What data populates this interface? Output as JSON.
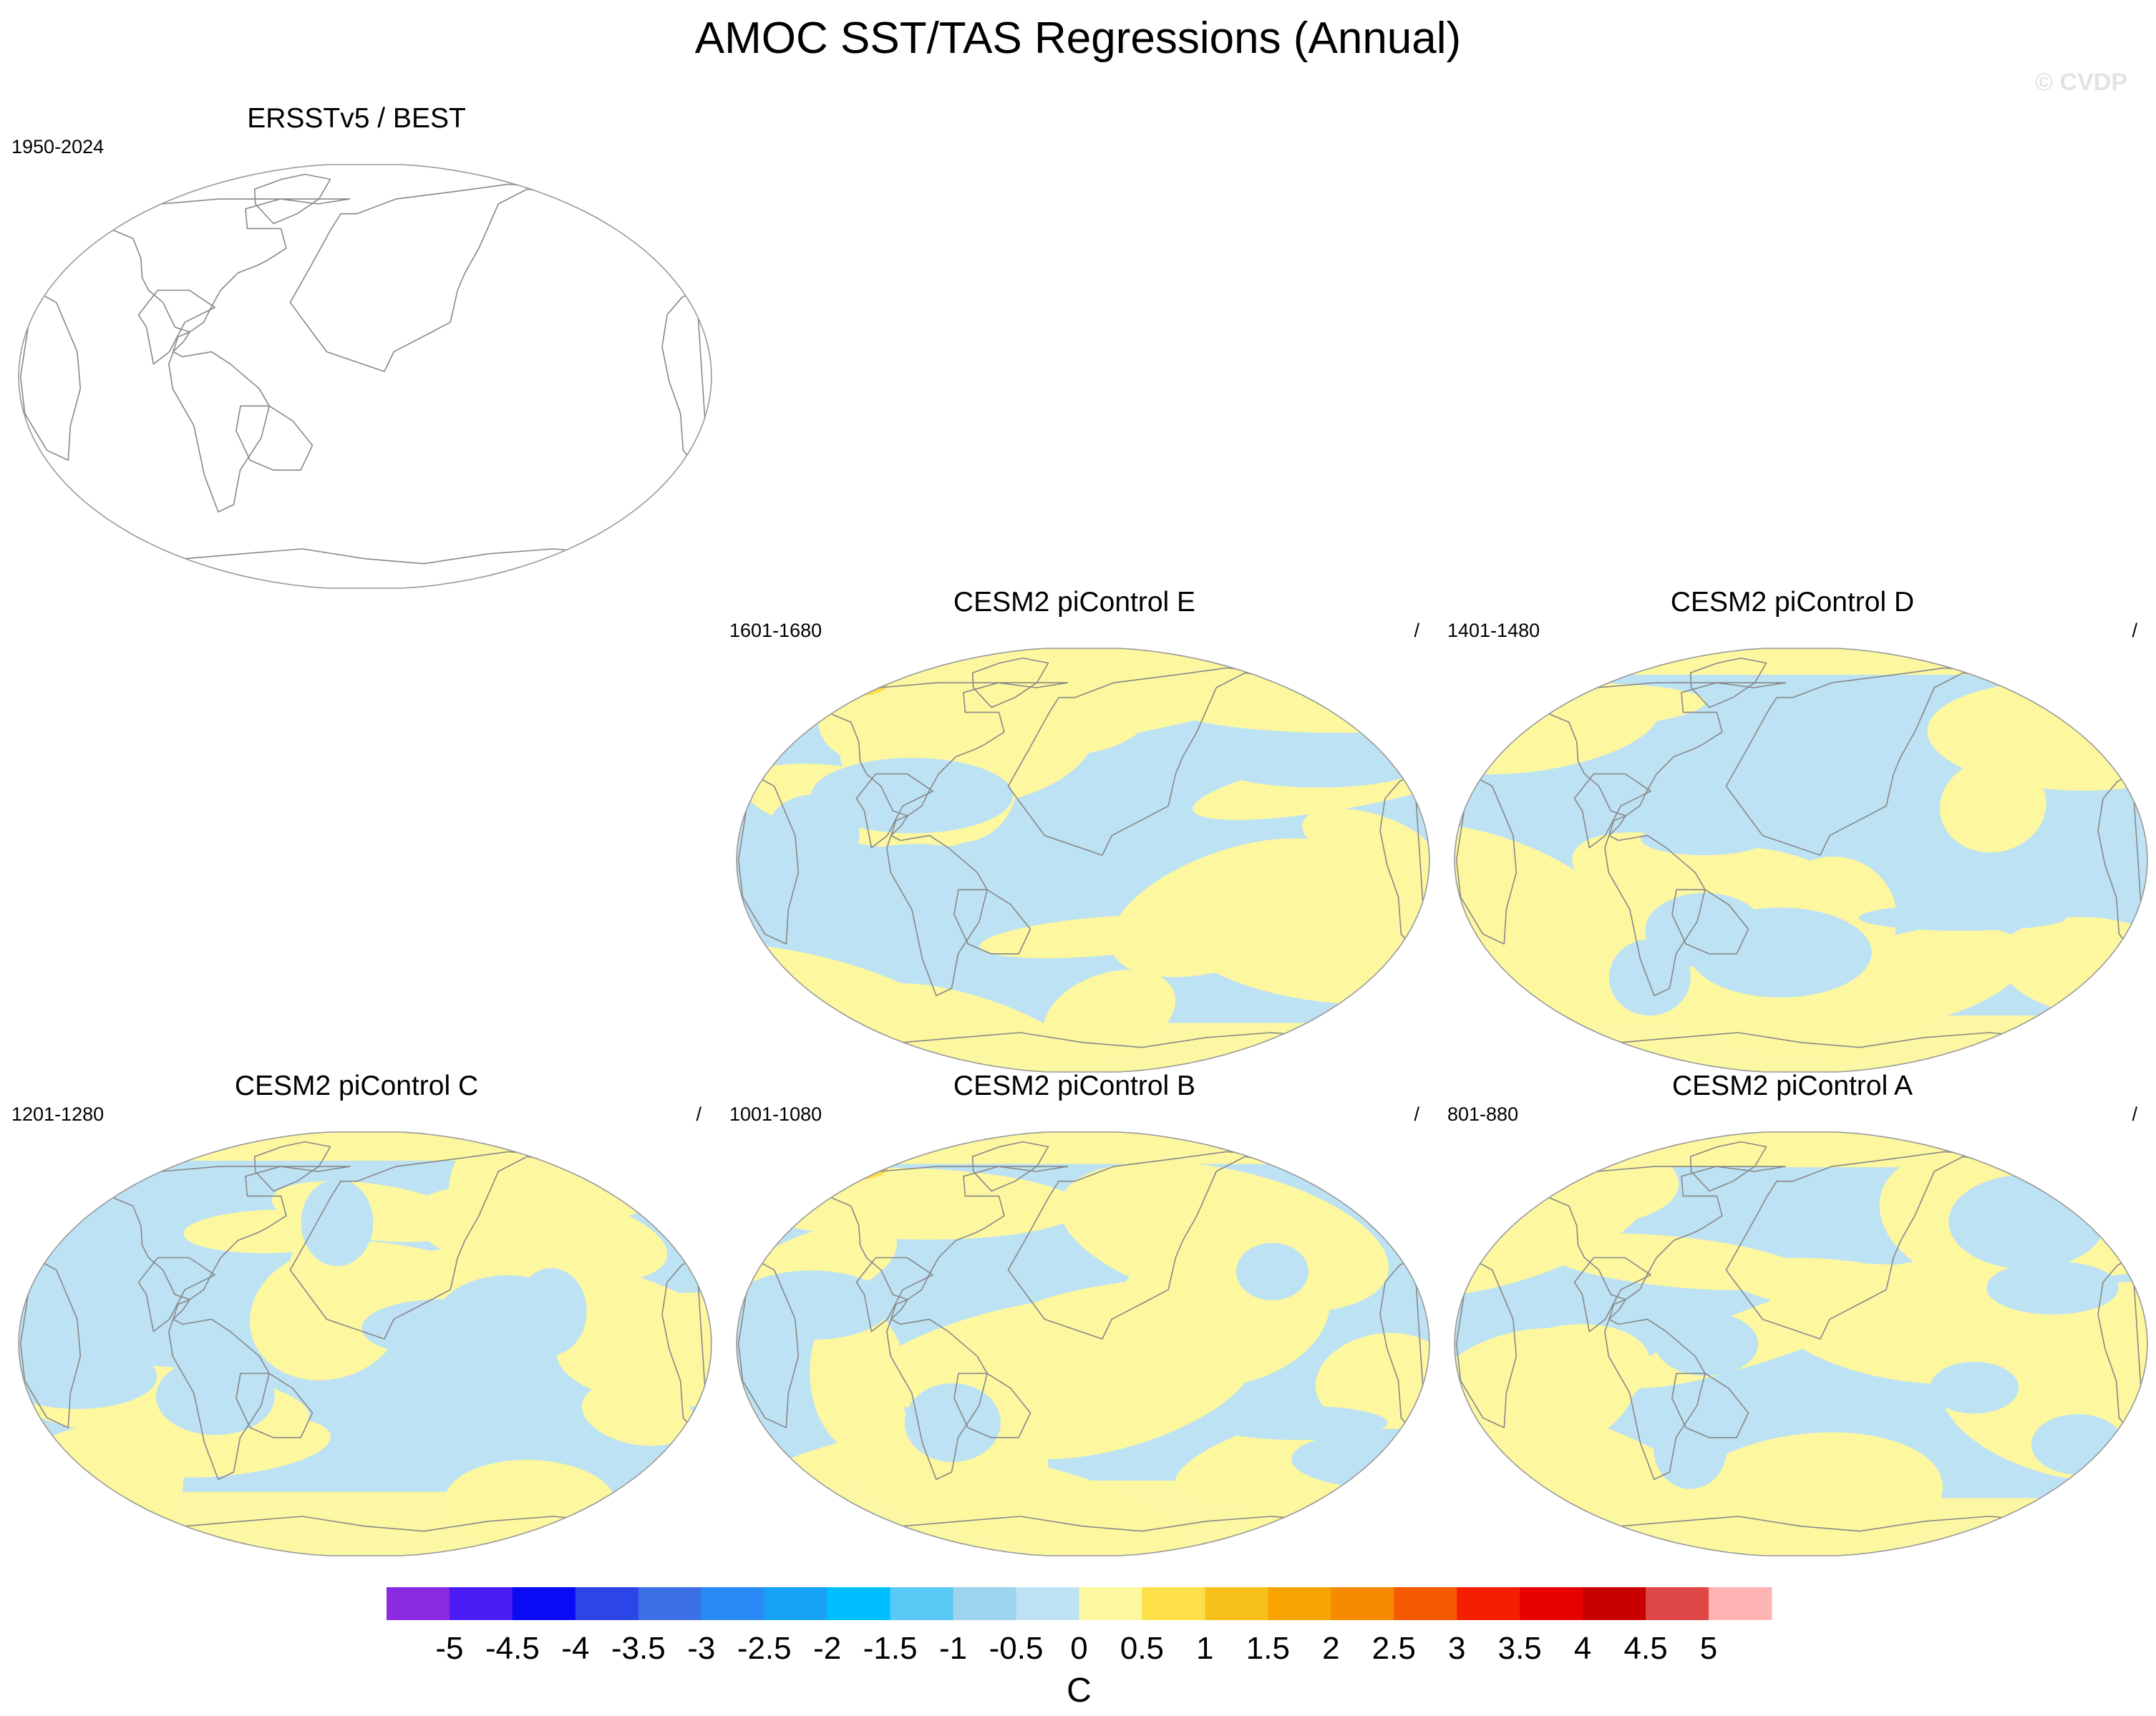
{
  "title": "AMOC SST/TAS Regressions (Annual)",
  "watermark": "© CVDP",
  "panels": [
    {
      "id": "obs",
      "title": "ERSSTv5 / BEST",
      "years": "1950-2024",
      "slash": "",
      "filled": false
    },
    {
      "id": "e",
      "title": "CESM2 piControl E",
      "years": "1601-1680",
      "slash": "/",
      "filled": true,
      "seed": 3
    },
    {
      "id": "d",
      "title": "CESM2 piControl D",
      "years": "1401-1480",
      "slash": "/",
      "filled": true,
      "seed": 7
    },
    {
      "id": "c",
      "title": "CESM2 piControl C",
      "years": "1201-1280",
      "slash": "/",
      "filled": true,
      "seed": 11
    },
    {
      "id": "b",
      "title": "CESM2 piControl B",
      "years": "1001-1080",
      "slash": "/",
      "filled": true,
      "seed": 17
    },
    {
      "id": "a",
      "title": "CESM2 piControl A",
      "years": "801-880",
      "slash": "/",
      "filled": true,
      "seed": 23
    }
  ],
  "colorbar": {
    "unit": "C",
    "labels": [
      "-5",
      "-4.5",
      "-4",
      "-3.5",
      "-3",
      "-2.5",
      "-2",
      "-1.5",
      "-1",
      "-0.5",
      "0",
      "0.5",
      "1",
      "1.5",
      "2",
      "2.5",
      "3",
      "3.5",
      "4",
      "4.5",
      "5"
    ],
    "colors": [
      "#8a2be2",
      "#4b1cf5",
      "#0a0af5",
      "#2b45e6",
      "#3a6fe6",
      "#2a8af5",
      "#16a3f5",
      "#00bfff",
      "#5ac8f5",
      "#9fd4ee",
      "#bde2f3",
      "#fdf7a0",
      "#fde047",
      "#f8c01a",
      "#f8a400",
      "#f88a00",
      "#f55a00",
      "#f51e00",
      "#e60000",
      "#c80000",
      "#e04848",
      "#ffb4b4"
    ]
  },
  "map_colors": {
    "positive": "#fdf7a0",
    "negative": "#bde2f3",
    "strong_positive": "#fde047",
    "coast": "#888888",
    "border": "#999999"
  }
}
